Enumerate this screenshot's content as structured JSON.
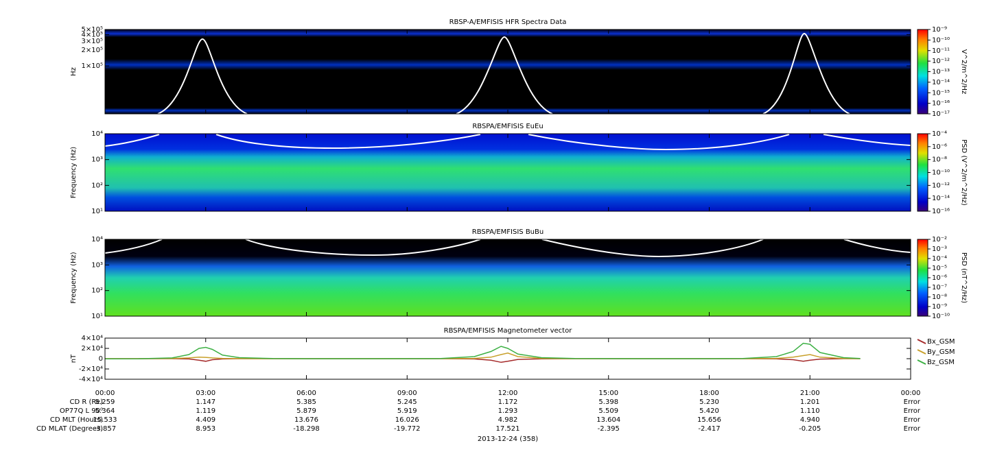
{
  "chart_data": [
    {
      "type": "spectrogram",
      "title": "RBSP-A/EMFISIS  HFR Spectra Data",
      "ylabel": "Hz",
      "yscale": "log",
      "ylim": [
        12000,
        500000
      ],
      "yticks": [
        {
          "value": 500000,
          "label": "5×10⁵"
        },
        {
          "value": 400000,
          "label": "4×10⁵"
        },
        {
          "value": 300000,
          "label": "3×10⁵"
        },
        {
          "value": 200000,
          "label": "2×10⁵"
        },
        {
          "value": 100000,
          "label": "1×10⁵"
        }
      ],
      "colorbar": {
        "label": "V^2/m^2/Hz",
        "scale": "log",
        "zlim": [
          1e-17,
          1e-09
        ],
        "zticks": [
          {
            "value": 1e-09,
            "label": "10⁻⁹"
          },
          {
            "value": 1e-10,
            "label": "10⁻¹⁰"
          },
          {
            "value": 1e-11,
            "label": "10⁻¹¹"
          },
          {
            "value": 1e-12,
            "label": "10⁻¹²"
          },
          {
            "value": 1e-13,
            "label": "10⁻¹³"
          },
          {
            "value": 1e-14,
            "label": "10⁻¹⁴"
          },
          {
            "value": 1e-15,
            "label": "10⁻¹⁵"
          },
          {
            "value": 1e-16,
            "label": "10⁻¹⁶"
          },
          {
            "value": 1e-17,
            "label": "10⁻¹⁷"
          }
        ]
      }
    },
    {
      "type": "spectrogram",
      "title": "RBSPA/EMFISIS  EuEu",
      "ylabel": "Frequency (Hz)",
      "yscale": "log",
      "ylim": [
        10,
        10000
      ],
      "yticks": [
        {
          "value": 10000,
          "label": "10⁴"
        },
        {
          "value": 1000,
          "label": "10³"
        },
        {
          "value": 100,
          "label": "10²"
        },
        {
          "value": 10,
          "label": "10¹"
        }
      ],
      "colorbar": {
        "label": "PSD (V^2/m^2/Hz)",
        "scale": "log",
        "zlim": [
          1e-16,
          0.0001
        ],
        "zticks": [
          {
            "value": 0.0001,
            "label": "10⁻⁴"
          },
          {
            "value": 1e-06,
            "label": "10⁻⁶"
          },
          {
            "value": 1e-08,
            "label": "10⁻⁸"
          },
          {
            "value": 1e-10,
            "label": "10⁻¹⁰"
          },
          {
            "value": 1e-12,
            "label": "10⁻¹²"
          },
          {
            "value": 1e-14,
            "label": "10⁻¹⁴"
          },
          {
            "value": 1e-16,
            "label": "10⁻¹⁶"
          }
        ]
      }
    },
    {
      "type": "spectrogram",
      "title": "RBSPA/EMFISIS  BuBu",
      "ylabel": "Frequency (Hz)",
      "yscale": "log",
      "ylim": [
        10,
        10000
      ],
      "yticks": [
        {
          "value": 10000,
          "label": "10⁴"
        },
        {
          "value": 1000,
          "label": "10³"
        },
        {
          "value": 100,
          "label": "10²"
        },
        {
          "value": 10,
          "label": "10¹"
        }
      ],
      "colorbar": {
        "label": "PSD (nT^2/Hz)",
        "scale": "log",
        "zlim": [
          1e-10,
          0.01
        ],
        "zticks": [
          {
            "value": 0.01,
            "label": "10⁻²"
          },
          {
            "value": 0.001,
            "label": "10⁻³"
          },
          {
            "value": 0.0001,
            "label": "10⁻⁴"
          },
          {
            "value": 1e-05,
            "label": "10⁻⁵"
          },
          {
            "value": 1e-06,
            "label": "10⁻⁶"
          },
          {
            "value": 1e-07,
            "label": "10⁻⁷"
          },
          {
            "value": 1e-08,
            "label": "10⁻⁸"
          },
          {
            "value": 1e-09,
            "label": "10⁻⁹"
          },
          {
            "value": 1e-10,
            "label": "10⁻¹⁰"
          }
        ]
      }
    },
    {
      "type": "line",
      "title": "RBSPA/EMFISIS  Magnetometer vector",
      "ylabel": "nT",
      "xlabel": "2013-12-24 (358)",
      "xlim": [
        0,
        24
      ],
      "xticks": [
        {
          "value": 0,
          "label": "00:00"
        },
        {
          "value": 3,
          "label": "03:00"
        },
        {
          "value": 6,
          "label": "06:00"
        },
        {
          "value": 9,
          "label": "09:00"
        },
        {
          "value": 12,
          "label": "12:00"
        },
        {
          "value": 15,
          "label": "15:00"
        },
        {
          "value": 18,
          "label": "18:00"
        },
        {
          "value": 21,
          "label": "21:00"
        },
        {
          "value": 24,
          "label": "00:00"
        }
      ],
      "ylim": [
        -40000,
        40000
      ],
      "yticks": [
        {
          "value": 40000,
          "label": "4×10⁴"
        },
        {
          "value": 20000,
          "label": "2×10⁴"
        },
        0,
        {
          "value": -20000,
          "label": "-2×10⁴"
        },
        {
          "value": -40000,
          "label": "-4×10⁴"
        }
      ],
      "x": [
        0,
        1,
        2,
        2.5,
        2.8,
        3,
        3.2,
        3.5,
        4,
        5,
        6,
        8,
        10,
        11,
        11.5,
        11.8,
        12,
        12.3,
        13,
        14,
        16,
        18,
        19,
        20,
        20.5,
        20.8,
        21,
        21.3,
        22,
        22.5
      ],
      "series": [
        {
          "name": "Bx_GSM",
          "color": "#a52a2a",
          "values": [
            0,
            0,
            0,
            -500,
            -3000,
            -5000,
            -2000,
            -500,
            0,
            0,
            0,
            0,
            0,
            -500,
            -3000,
            -7000,
            -5000,
            -1500,
            -300,
            0,
            0,
            0,
            0,
            -300,
            -2000,
            -5000,
            -3000,
            -800,
            0,
            0
          ]
        },
        {
          "name": "By_GSM",
          "color": "#c8a02a",
          "values": [
            0,
            0,
            300,
            1500,
            3000,
            2500,
            1500,
            500,
            200,
            0,
            0,
            0,
            0,
            500,
            3000,
            8000,
            11000,
            4000,
            500,
            0,
            0,
            0,
            0,
            500,
            3000,
            6000,
            8000,
            3000,
            300,
            0
          ]
        },
        {
          "name": "Bz_GSM",
          "color": "#3cb043",
          "values": [
            -300,
            -200,
            1500,
            8000,
            20000,
            22000,
            18000,
            7000,
            2000,
            300,
            0,
            0,
            300,
            4000,
            14000,
            24000,
            20000,
            9000,
            2000,
            300,
            0,
            0,
            300,
            4000,
            14000,
            30000,
            28000,
            12000,
            2000,
            300
          ]
        }
      ]
    }
  ],
  "ephemeris": {
    "rows": [
      {
        "label": "CD R (Re)",
        "values": [
          "5.259",
          "1.147",
          "5.385",
          "5.245",
          "1.172",
          "5.398",
          "5.230",
          "1.201",
          "Error"
        ]
      },
      {
        "label": "OP77Q L 90⁰",
        "values": [
          "5.364",
          "1.119",
          "5.879",
          "5.919",
          "1.293",
          "5.509",
          "5.420",
          "1.110",
          "Error"
        ]
      },
      {
        "label": "CD MLT (Hours)",
        "values": [
          "15.533",
          "4.409",
          "13.676",
          "16.026",
          "4.982",
          "13.604",
          "15.656",
          "4.940",
          "Error"
        ]
      },
      {
        "label": "CD MLAT (Degrees)",
        "values": [
          "-3.857",
          "8.953",
          "-18.298",
          "-19.772",
          "17.521",
          "-2.395",
          "-2.417",
          "-0.205",
          "Error"
        ]
      }
    ]
  }
}
